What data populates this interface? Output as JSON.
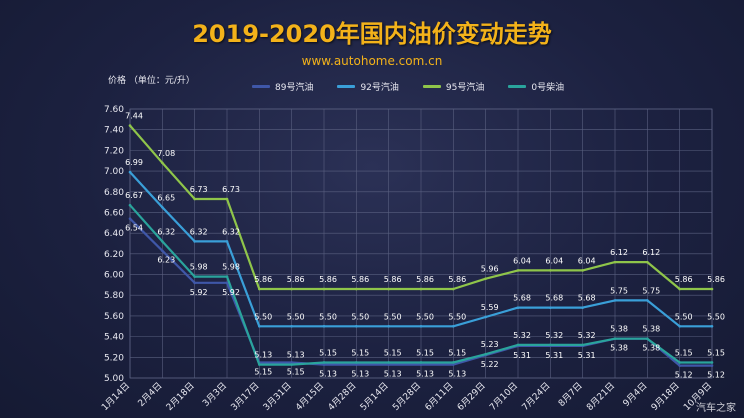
{
  "header": {
    "title": "2019-2020年国内油价变动走势",
    "subtitle": "www.autohome.com.cn",
    "ylabel": "价格 （单位：元/升）",
    "watermark": "汽车之家"
  },
  "colors": {
    "s89": "#3f57a8",
    "s92": "#3a9fd8",
    "s95": "#8fc54a",
    "s0": "#2aa49c",
    "grid": "#5a6080"
  },
  "chart_data": {
    "type": "line",
    "title": "2019-2020年国内油价变动走势",
    "ylabel": "价格 （单位：元/升）",
    "ylim": [
      5.0,
      7.6
    ],
    "yticks": [
      "5.00",
      "5.20",
      "5.40",
      "5.60",
      "5.80",
      "6.00",
      "6.20",
      "6.40",
      "6.60",
      "6.80",
      "7.00",
      "7.20",
      "7.40",
      "7.60"
    ],
    "grid": true,
    "legend_position": "top",
    "categories": [
      "1月14日",
      "2月4日",
      "2月18日",
      "3月3日",
      "3月17日",
      "3月31日",
      "4月15日",
      "4月28日",
      "5月14日",
      "5月28日",
      "6月11日",
      "6月29日",
      "7月10日",
      "7月24日",
      "8月7日",
      "8月21日",
      "9月4日",
      "9月18日",
      "10月9日"
    ],
    "series": [
      {
        "name": "89号汽油",
        "color_key": "s89",
        "values": [
          6.54,
          6.23,
          5.92,
          5.92,
          5.15,
          5.15,
          5.13,
          5.13,
          5.13,
          5.13,
          5.13,
          5.22,
          5.31,
          5.31,
          5.31,
          5.38,
          5.38,
          5.12,
          5.12
        ],
        "labels": [
          "6.54",
          "6.23",
          "5.92",
          "5.92",
          "5.15",
          "5.15",
          "5.13",
          "5.13",
          "5.13",
          "5.13",
          "5.13",
          "5.22",
          "5.31",
          "5.31",
          "5.31",
          "5.38",
          "5.38",
          "5.12",
          "5.12"
        ]
      },
      {
        "name": "92号汽油",
        "color_key": "s92",
        "values": [
          6.99,
          6.65,
          6.32,
          6.32,
          5.5,
          5.5,
          5.5,
          5.5,
          5.5,
          5.5,
          5.5,
          5.59,
          5.68,
          5.68,
          5.68,
          5.75,
          5.75,
          5.5,
          5.5
        ],
        "labels": [
          "6.99",
          "6.65",
          "6.32",
          "6.32",
          "5.50",
          "5.50",
          "5.50",
          "5.50",
          "5.50",
          "5.50",
          "5.50",
          "5.59",
          "5.68",
          "5.68",
          "5.68",
          "5.75",
          "5.75",
          "5.50",
          "5.50"
        ]
      },
      {
        "name": "95号汽油",
        "color_key": "s95",
        "values": [
          7.44,
          7.08,
          6.73,
          6.73,
          5.86,
          5.86,
          5.86,
          5.86,
          5.86,
          5.86,
          5.86,
          5.96,
          6.04,
          6.04,
          6.04,
          6.12,
          6.12,
          5.86,
          5.86
        ],
        "labels": [
          "7.44",
          "7.08",
          "6.73",
          "6.73",
          "5.86",
          "5.86",
          "5.86",
          "5.86",
          "5.86",
          "5.86",
          "5.86",
          "5.96",
          "6.04",
          "6.04",
          "6.04",
          "6.12",
          "6.12",
          "5.86",
          "5.86"
        ]
      },
      {
        "name": "0号柴油",
        "color_key": "s0",
        "values": [
          6.67,
          6.32,
          5.98,
          5.98,
          5.13,
          5.13,
          5.15,
          5.15,
          5.15,
          5.15,
          5.15,
          5.23,
          5.32,
          5.32,
          5.32,
          5.38,
          5.38,
          5.15,
          5.15
        ],
        "labels": [
          "6.67",
          "6.32",
          "5.98",
          "5.98",
          "5.13",
          "5.13",
          "5.15",
          "5.15",
          "5.15",
          "5.15",
          "5.15",
          "5.23",
          "5.32",
          "5.32",
          "5.32",
          "5.38",
          "5.38",
          "5.15",
          "5.15"
        ]
      }
    ]
  }
}
